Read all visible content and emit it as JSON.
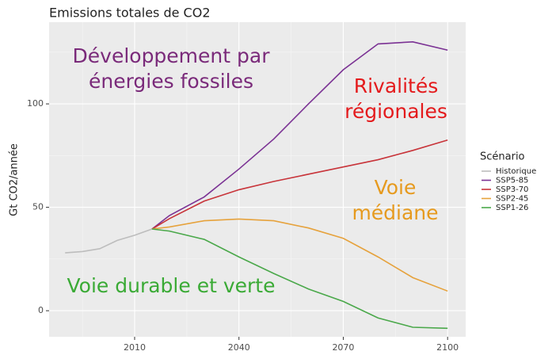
{
  "chart_data": {
    "type": "line",
    "title": "Emissions totales de CO2",
    "y_label": "Gt CO2/année",
    "xlim": [
      1985.4,
      2105.2
    ],
    "xticks": [
      2010,
      2040,
      2070,
      2100
    ],
    "ylim": [
      -12.6,
      139.5
    ],
    "yticks": [
      0,
      50,
      100
    ],
    "grid": true,
    "legend": {
      "title": "Scénario",
      "position": "right"
    },
    "series": [
      {
        "name": "Historique",
        "color": "#bdbdbd",
        "x": [
          1990,
          1995,
          2000,
          2005,
          2010,
          2015
        ],
        "values": [
          28,
          28.6,
          30,
          34,
          36.5,
          39.5
        ]
      },
      {
        "name": "SSP5-85",
        "color": "#7b3294",
        "x": [
          2015,
          2020,
          2030,
          2040,
          2050,
          2060,
          2070,
          2080,
          2090,
          2100
        ],
        "values": [
          39.5,
          46,
          55,
          68.5,
          83,
          100,
          116.5,
          129,
          130,
          126
        ]
      },
      {
        "name": "SSP3-70",
        "color": "#c8343a",
        "x": [
          2015,
          2020,
          2030,
          2040,
          2050,
          2060,
          2070,
          2080,
          2090,
          2100
        ],
        "values": [
          39.5,
          44.5,
          53,
          58.5,
          62.5,
          66,
          69.5,
          73,
          77.5,
          82.5
        ]
      },
      {
        "name": "SSP2-45",
        "color": "#e6a23c",
        "x": [
          2015,
          2020,
          2030,
          2040,
          2050,
          2060,
          2070,
          2080,
          2090,
          2100
        ],
        "values": [
          39.5,
          40.5,
          43.5,
          44.3,
          43.5,
          40,
          35,
          26,
          16,
          9.5
        ]
      },
      {
        "name": "SSP1-26",
        "color": "#4aa84a",
        "x": [
          2015,
          2020,
          2030,
          2040,
          2050,
          2060,
          2070,
          2080,
          2090,
          2100
        ],
        "values": [
          39.5,
          38.5,
          34.5,
          26,
          18,
          10.5,
          4.5,
          -3.5,
          -8,
          -8.5
        ]
      }
    ],
    "annotations": [
      {
        "text": [
          "Développement par",
          "énergies fossiles"
        ],
        "color": "#7a2a7a"
      },
      {
        "text": [
          "Rivalités",
          "régionales"
        ],
        "color": "#e41a1c"
      },
      {
        "text": [
          "Voie",
          "médiane"
        ],
        "color": "#e69a1e"
      },
      {
        "text": [
          "Voie durable et verte"
        ],
        "color": "#3aaa35"
      }
    ]
  }
}
